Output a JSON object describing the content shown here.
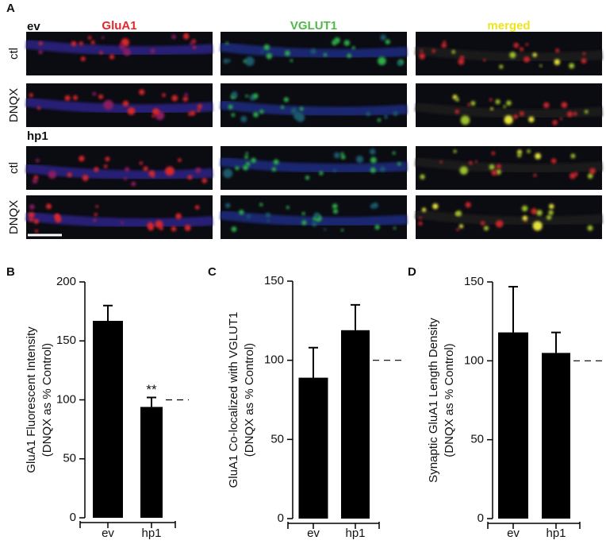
{
  "panel_a": {
    "label": "A",
    "channels": [
      {
        "name": "GluA1",
        "color": "#e5262b"
      },
      {
        "name": "VGLUT1",
        "color": "#52b848"
      },
      {
        "name": "merged",
        "color": "#eee51c"
      }
    ],
    "groups": [
      {
        "name": "ev",
        "rows": [
          "ctl",
          "DNQX"
        ]
      },
      {
        "name": "hp1",
        "rows": [
          "ctl",
          "DNQX"
        ]
      }
    ]
  },
  "chart_data": [
    {
      "type": "bar",
      "panel_label": "B",
      "ylabel": [
        "GluA1 Fluorescent Intensity",
        "(DNQX as % Control)"
      ],
      "categories": [
        "ev",
        "hp1"
      ],
      "values": [
        167,
        94
      ],
      "errors": [
        13,
        8
      ],
      "value_annotations": [
        null,
        "**"
      ],
      "color": "#000000",
      "ylim": [
        0,
        200
      ],
      "yticks": [
        0,
        50,
        100,
        150,
        200
      ],
      "reference_line": 100
    },
    {
      "type": "bar",
      "panel_label": "C",
      "ylabel": [
        "GluA1 Co-localized with VGLUT1",
        "(DNQX as % Control)"
      ],
      "categories": [
        "ev",
        "hp1"
      ],
      "values": [
        89,
        119
      ],
      "errors": [
        19,
        16
      ],
      "color": "#000000",
      "ylim": [
        0,
        150
      ],
      "yticks": [
        0,
        50,
        100,
        150
      ],
      "reference_line": 100
    },
    {
      "type": "bar",
      "panel_label": "D",
      "ylabel": [
        "Synaptic GluA1 Length Density",
        "(DNQX as % Control)"
      ],
      "categories": [
        "ev",
        "hp1"
      ],
      "values": [
        118,
        105
      ],
      "errors": [
        29,
        13
      ],
      "color": "#000000",
      "ylim": [
        0,
        150
      ],
      "yticks": [
        0,
        50,
        100,
        150
      ],
      "reference_line": 100
    }
  ]
}
